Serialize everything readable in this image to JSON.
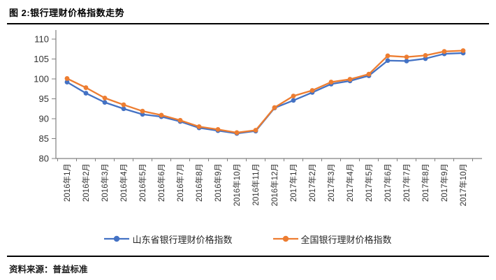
{
  "header": {
    "title": "图 2:银行理财价格指数走势"
  },
  "source": {
    "label": "资料来源：普益标准"
  },
  "chart_data": {
    "type": "line",
    "title": "图 2:银行理财价格指数走势",
    "categories": [
      "2016年1月",
      "2016年2月",
      "2016年3月",
      "2016年4月",
      "2016年5月",
      "2016年6月",
      "2016年7月",
      "2016年8月",
      "2016年9月",
      "2016年10月",
      "2016年11月",
      "2016年12月",
      "2017年1月",
      "2017年2月",
      "2017年3月",
      "2017年4月",
      "2017年5月",
      "2017年6月",
      "2017年7月",
      "2017年8月",
      "2017年9月",
      "2017年10月"
    ],
    "series": [
      {
        "name": "山东省银行理财价格指数",
        "color": "#4472C4",
        "marker": "circle",
        "values": [
          99.2,
          96.4,
          94.1,
          92.5,
          91.1,
          90.5,
          89.3,
          87.7,
          87.0,
          86.3,
          86.9,
          92.7,
          94.6,
          96.6,
          98.7,
          99.5,
          100.8,
          104.6,
          104.5,
          105.1,
          106.3,
          106.5
        ]
      },
      {
        "name": "全国银行理财价格指数",
        "color": "#ED7D31",
        "marker": "circle",
        "values": [
          100.1,
          97.8,
          95.2,
          93.5,
          91.9,
          90.9,
          89.6,
          88.0,
          87.3,
          86.5,
          87.1,
          92.8,
          95.7,
          97.1,
          99.2,
          99.9,
          101.2,
          105.8,
          105.5,
          105.9,
          106.9,
          107.1
        ]
      }
    ],
    "xlabel": "",
    "ylabel": "",
    "ylim": [
      80,
      110
    ],
    "yticks": [
      80,
      85,
      90,
      95,
      100,
      105,
      110
    ],
    "grid": false,
    "legend_position": "bottom",
    "axis_color": "#808080",
    "tick_label_color": "#333333"
  }
}
